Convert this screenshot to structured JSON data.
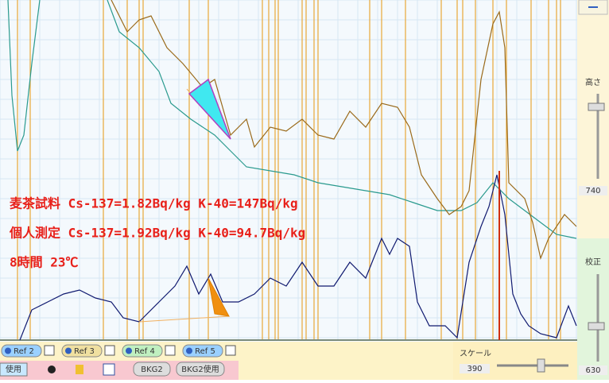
{
  "annotations": [
    "麦茶試料 Cs-137=1.82Bq/kg K-40=147Bq/kg",
    "個人測定 Cs-137=1.92Bq/kg K-40=94.7Bq/kg",
    "8時間 23℃"
  ],
  "right_panel": {
    "height_label": "高さ",
    "height_value": 740,
    "calibration_label": "校正",
    "calibration_value": 630
  },
  "scale": {
    "label": "スケール",
    "value": 390
  },
  "refs": [
    "Ref 2",
    "Ref 3",
    "Ref 4",
    "Ref 5"
  ],
  "buttons": [
    "使用",
    "BKG2",
    "BKG2使用"
  ]
}
